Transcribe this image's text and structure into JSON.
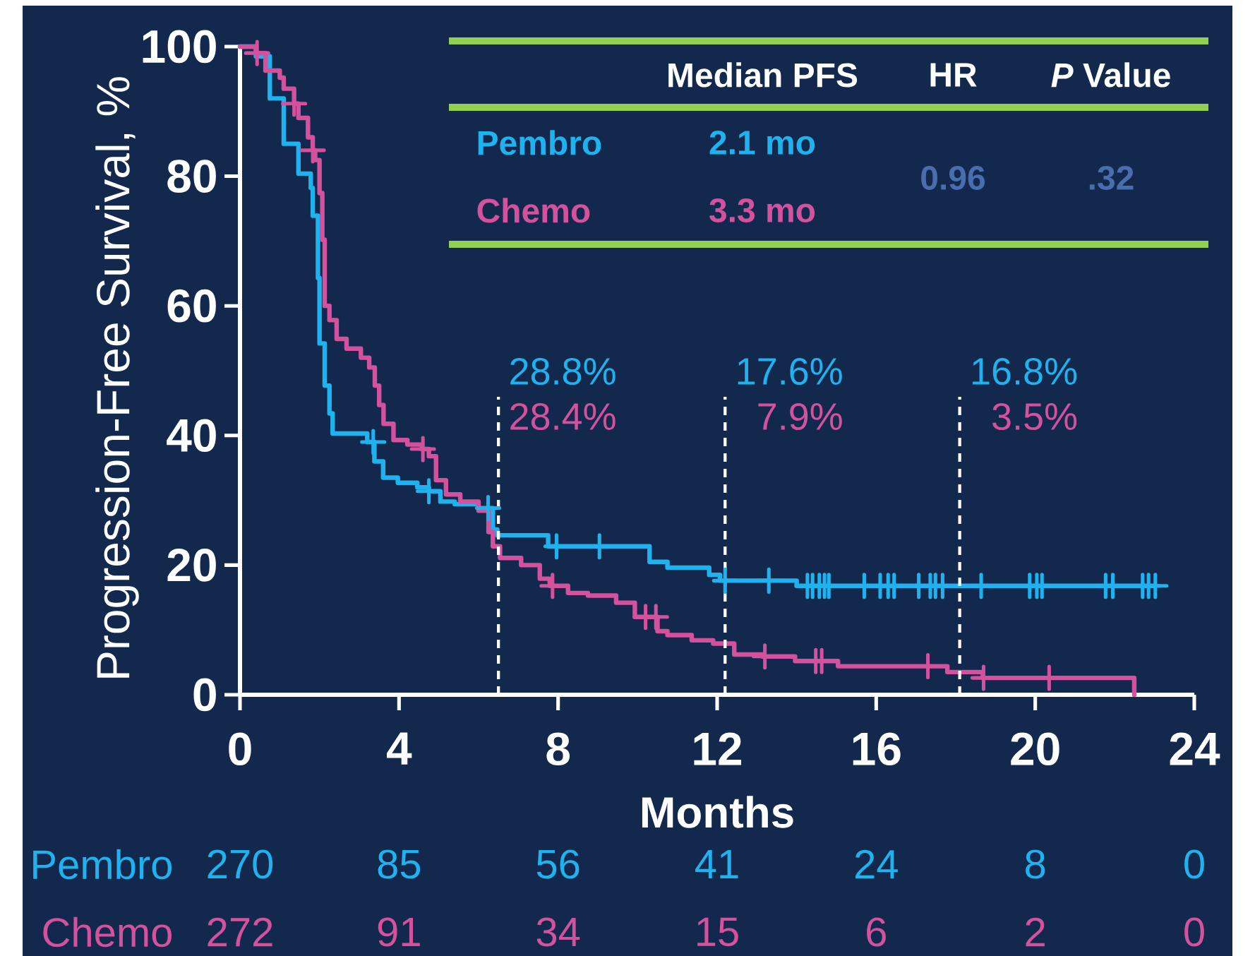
{
  "chart_data": {
    "type": "step",
    "xlabel": "Months",
    "ylabel": "Progression-Free Survival, %",
    "xlim": [
      0,
      24
    ],
    "ylim": [
      0,
      100
    ],
    "xticks": [
      0,
      4,
      8,
      12,
      16,
      20,
      24
    ],
    "yticks": [
      0,
      20,
      40,
      60,
      80,
      100
    ],
    "legend": "top left",
    "series": [
      {
        "name": "Pembro",
        "color": "#1fb2ee",
        "x": [
          0,
          0.4,
          0.75,
          1.1,
          1.47,
          1.78,
          1.83,
          1.96,
          2.0,
          2.13,
          2.25,
          2.33,
          3.2,
          3.38,
          3.6,
          3.97,
          4.46,
          4.75,
          5.04,
          5.4,
          6.0,
          6.36,
          6.47,
          7.75,
          10.3,
          10.75,
          11.8,
          12.07,
          14.0,
          23.0
        ],
        "values": [
          100,
          98.5,
          92,
          85,
          80.4,
          78.2,
          73.9,
          64.3,
          54.2,
          47.7,
          43.4,
          40.3,
          39,
          36,
          33.5,
          32.7,
          32,
          31.4,
          29.8,
          29.4,
          28.8,
          25.5,
          24.6,
          22.9,
          20.5,
          19.6,
          18.5,
          17.6,
          16.8,
          16.8
        ]
      },
      {
        "name": "Chemo",
        "color": "#d2529e",
        "x": [
          0,
          0.4,
          0.64,
          1.0,
          1.1,
          1.36,
          1.47,
          1.71,
          1.83,
          1.89,
          2.0,
          2.07,
          2.13,
          2.25,
          2.43,
          2.68,
          3.04,
          3.25,
          3.39,
          3.5,
          3.61,
          3.86,
          4.21,
          4.57,
          4.75,
          4.93,
          5.18,
          5.54,
          6.0,
          6.25,
          6.36,
          6.54,
          7.07,
          7.54,
          7.79,
          8.25,
          8.75,
          9.46,
          9.93,
          10.5,
          10.75,
          11.36,
          11.9,
          12.43,
          13.14,
          13.96,
          15.04,
          17.79,
          18.68,
          22.49
        ],
        "values": [
          100,
          99,
          96.3,
          95.2,
          93.5,
          91.2,
          89,
          86,
          84,
          82.5,
          77.4,
          70.2,
          60,
          57.8,
          54.9,
          53.4,
          52,
          50.5,
          47.7,
          44.7,
          41.8,
          39.3,
          38.6,
          37.9,
          36.8,
          33.1,
          30.9,
          29.8,
          28.4,
          25.1,
          22.9,
          21.1,
          20,
          17.9,
          16.8,
          15.7,
          15.3,
          14.2,
          12,
          9.8,
          9.2,
          8.4,
          7.9,
          6.2,
          5.9,
          5.2,
          4.4,
          3.5,
          2.6,
          0
        ]
      },
      {
        "type": "scatter",
        "marker": "cross",
        "color": "#1fb2ee",
        "x": [
          3.35,
          4.75,
          6.24,
          7.96,
          9.04,
          12.2,
          13.3,
          14.27,
          14.4,
          14.57,
          14.7,
          14.81,
          15.7,
          16.1,
          16.3,
          16.45,
          17.07,
          17.36,
          17.49,
          17.67,
          18.64,
          19.86,
          20.04,
          20.17,
          21.77,
          21.95,
          22.7,
          22.85,
          23.02
        ],
        "values": [
          39,
          31.4,
          28.8,
          22.9,
          22.9,
          17.6,
          17.6,
          16.8,
          16.8,
          16.8,
          16.8,
          16.8,
          16.8,
          16.8,
          16.8,
          16.8,
          16.8,
          16.8,
          16.8,
          16.8,
          16.8,
          16.8,
          16.8,
          16.8,
          16.8,
          16.8,
          16.8,
          16.8,
          16.8
        ]
      },
      {
        "type": "scatter",
        "marker": "cross",
        "color": "#d2529e",
        "x": [
          0.43,
          1.36,
          1.83,
          4.6,
          7.86,
          10.2,
          10.46,
          13.2,
          14.48,
          14.63,
          17.3,
          18.7,
          20.35
        ],
        "values": [
          99,
          91.2,
          84,
          37.9,
          16.8,
          12,
          12,
          5.9,
          5.2,
          5.2,
          4.4,
          2.6,
          2.6
        ]
      }
    ],
    "ref_lines": [
      {
        "axis": "x",
        "value": 6.5,
        "color": "#ffffff",
        "line_style": "dashed"
      },
      {
        "axis": "x",
        "value": 12.2,
        "color": "#ffffff",
        "line_style": "dashed"
      },
      {
        "axis": "x",
        "value": 18.1,
        "color": "#ffffff",
        "line_style": "dashed"
      }
    ],
    "annotations": [
      "Median PFS",
      "HR",
      "*P* Value",
      "2.1 mo",
      "3.3 mo",
      "0.96",
      ".32",
      "28.8%",
      "28.4%",
      "17.6%",
      "7.9%",
      "16.8%",
      "3.5%",
      "270",
      "85",
      "56",
      "41",
      "24",
      "8",
      "0",
      "272",
      "91",
      "34",
      "15",
      "6",
      "2",
      "0"
    ]
  }
}
